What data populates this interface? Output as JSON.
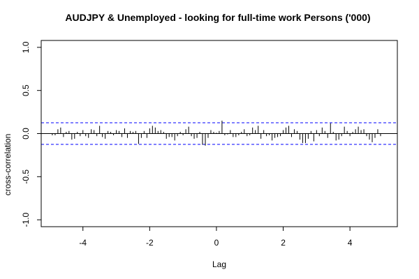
{
  "chart_data": {
    "type": "bar",
    "title": "AUDJPY & Unemployed - looking for full-time work Persons ('000)",
    "xlabel": "Lag",
    "ylabel": "cross-correlation",
    "xlim": [
      -5.25,
      5.42
    ],
    "ylim": [
      -1.08,
      1.08
    ],
    "x_ticks": [
      -4,
      -2,
      0,
      2,
      4
    ],
    "x_tick_labels": [
      "-4",
      "-2",
      "0",
      "2",
      "4"
    ],
    "y_ticks": [
      -1.0,
      -0.5,
      0.0,
      0.5,
      1.0
    ],
    "y_tick_labels": [
      "-1.0",
      "-0.5",
      "0.0",
      "0.5",
      "1.0"
    ],
    "confidence_band": 0.125,
    "band_color": "#0000ff",
    "bar_color": "#000000",
    "lags": [
      -4.917,
      -4.833,
      -4.75,
      -4.667,
      -4.583,
      -4.5,
      -4.417,
      -4.333,
      -4.25,
      -4.167,
      -4.083,
      -4.0,
      -3.917,
      -3.833,
      -3.75,
      -3.667,
      -3.583,
      -3.5,
      -3.417,
      -3.333,
      -3.25,
      -3.167,
      -3.083,
      -3.0,
      -2.917,
      -2.833,
      -2.75,
      -2.667,
      -2.583,
      -2.5,
      -2.417,
      -2.333,
      -2.25,
      -2.167,
      -2.083,
      -2.0,
      -1.917,
      -1.833,
      -1.75,
      -1.667,
      -1.583,
      -1.5,
      -1.417,
      -1.333,
      -1.25,
      -1.167,
      -1.083,
      -1.0,
      -0.917,
      -0.833,
      -0.75,
      -0.667,
      -0.583,
      -0.5,
      -0.417,
      -0.333,
      -0.25,
      -0.167,
      -0.083,
      0.0,
      0.083,
      0.167,
      0.25,
      0.333,
      0.417,
      0.5,
      0.583,
      0.667,
      0.75,
      0.833,
      0.917,
      1.0,
      1.083,
      1.167,
      1.25,
      1.333,
      1.417,
      1.5,
      1.583,
      1.667,
      1.75,
      1.833,
      1.917,
      2.0,
      2.083,
      2.167,
      2.25,
      2.333,
      2.417,
      2.5,
      2.583,
      2.667,
      2.75,
      2.833,
      2.917,
      3.0,
      3.083,
      3.167,
      3.25,
      3.333,
      3.417,
      3.5,
      3.583,
      3.667,
      3.75,
      3.833,
      3.917,
      4.0,
      4.083,
      4.167,
      4.25,
      4.333,
      4.417,
      4.5,
      4.583,
      4.667,
      4.75,
      4.833,
      4.917
    ],
    "values": [
      -0.02,
      -0.02,
      0.05,
      0.07,
      -0.04,
      0.02,
      0.03,
      -0.07,
      -0.06,
      0.02,
      -0.03,
      0.04,
      -0.03,
      -0.05,
      0.05,
      0.04,
      -0.03,
      0.09,
      -0.04,
      -0.06,
      0.03,
      0.02,
      -0.02,
      0.04,
      0.03,
      -0.04,
      0.06,
      -0.05,
      0.03,
      0.02,
      0.03,
      -0.12,
      -0.05,
      0.03,
      -0.05,
      0.06,
      0.09,
      0.07,
      0.03,
      0.04,
      0.02,
      -0.06,
      -0.04,
      -0.04,
      -0.08,
      -0.03,
      0.02,
      -0.02,
      0.05,
      0.08,
      -0.03,
      -0.06,
      -0.05,
      0.02,
      -0.13,
      -0.14,
      -0.05,
      0.04,
      0.02,
      0.01,
      0.03,
      0.15,
      -0.02,
      -0.01,
      0.04,
      -0.04,
      -0.04,
      -0.02,
      0.02,
      0.05,
      -0.03,
      -0.02,
      0.07,
      0.04,
      0.09,
      -0.06,
      0.04,
      -0.03,
      -0.02,
      -0.08,
      -0.05,
      -0.04,
      -0.03,
      0.04,
      0.07,
      0.09,
      -0.04,
      0.05,
      0.03,
      -0.07,
      -0.11,
      -0.11,
      -0.06,
      0.03,
      -0.09,
      0.04,
      -0.03,
      0.07,
      0.03,
      -0.05,
      0.12,
      0.02,
      -0.08,
      -0.07,
      -0.03,
      0.08,
      0.03,
      -0.03,
      0.02,
      0.05,
      0.08,
      0.04,
      0.05,
      -0.03,
      -0.07,
      -0.1,
      -0.05,
      0.05,
      -0.03
    ],
    "grid": false,
    "legend": "none"
  }
}
